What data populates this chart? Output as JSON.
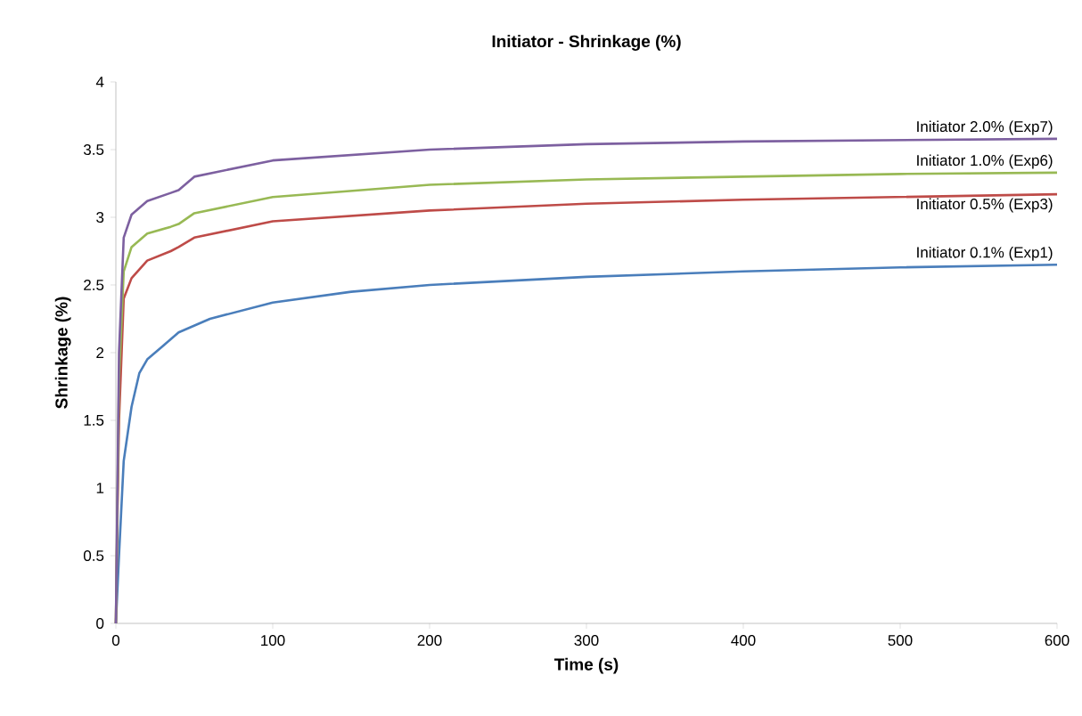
{
  "chart_data": {
    "type": "line",
    "title": "Initiator - Shrinkage (%)",
    "xlabel": "Time (s)",
    "ylabel": "Shrinkage (%)",
    "xlim": [
      0,
      600
    ],
    "ylim": [
      0,
      4
    ],
    "xticks": [
      0,
      100,
      200,
      300,
      400,
      500,
      600
    ],
    "yticks": [
      0,
      0.5,
      1,
      1.5,
      2,
      2.5,
      3,
      3.5,
      4
    ],
    "grid": false,
    "legend": false,
    "marker": "none",
    "line_style": "solid",
    "series": [
      {
        "name": "Initiator 0.1% (Exp1)",
        "color": "#4a7ebb",
        "x": [
          0,
          2,
          5,
          10,
          15,
          20,
          25,
          30,
          40,
          60,
          100,
          150,
          200,
          300,
          400,
          500,
          600
        ],
        "values": [
          0,
          0.5,
          1.2,
          1.6,
          1.85,
          1.95,
          2.0,
          2.05,
          2.15,
          2.25,
          2.37,
          2.45,
          2.5,
          2.56,
          2.6,
          2.63,
          2.65
        ]
      },
      {
        "name": "Initiator 0.5% (Exp3)",
        "color": "#be4b48",
        "x": [
          0,
          1,
          2,
          5,
          10,
          20,
          35,
          40,
          50,
          100,
          200,
          300,
          400,
          500,
          600
        ],
        "values": [
          0,
          0.8,
          1.5,
          2.4,
          2.55,
          2.68,
          2.75,
          2.78,
          2.85,
          2.97,
          3.05,
          3.1,
          3.13,
          3.15,
          3.17
        ]
      },
      {
        "name": "Initiator 1.0% (Exp6)",
        "color": "#98b954",
        "x": [
          0,
          1,
          2,
          5,
          10,
          20,
          35,
          40,
          50,
          100,
          200,
          300,
          400,
          500,
          600
        ],
        "values": [
          0,
          0.9,
          1.8,
          2.6,
          2.78,
          2.88,
          2.93,
          2.95,
          3.03,
          3.15,
          3.24,
          3.28,
          3.3,
          3.32,
          3.33
        ]
      },
      {
        "name": "Initiator 2.0% (Exp7)",
        "color": "#7d60a0",
        "x": [
          0,
          1,
          2,
          5,
          10,
          20,
          35,
          40,
          50,
          100,
          200,
          300,
          400,
          500,
          600
        ],
        "values": [
          0,
          1.0,
          2.0,
          2.85,
          3.02,
          3.12,
          3.18,
          3.2,
          3.3,
          3.42,
          3.5,
          3.54,
          3.56,
          3.57,
          3.58
        ]
      }
    ]
  }
}
